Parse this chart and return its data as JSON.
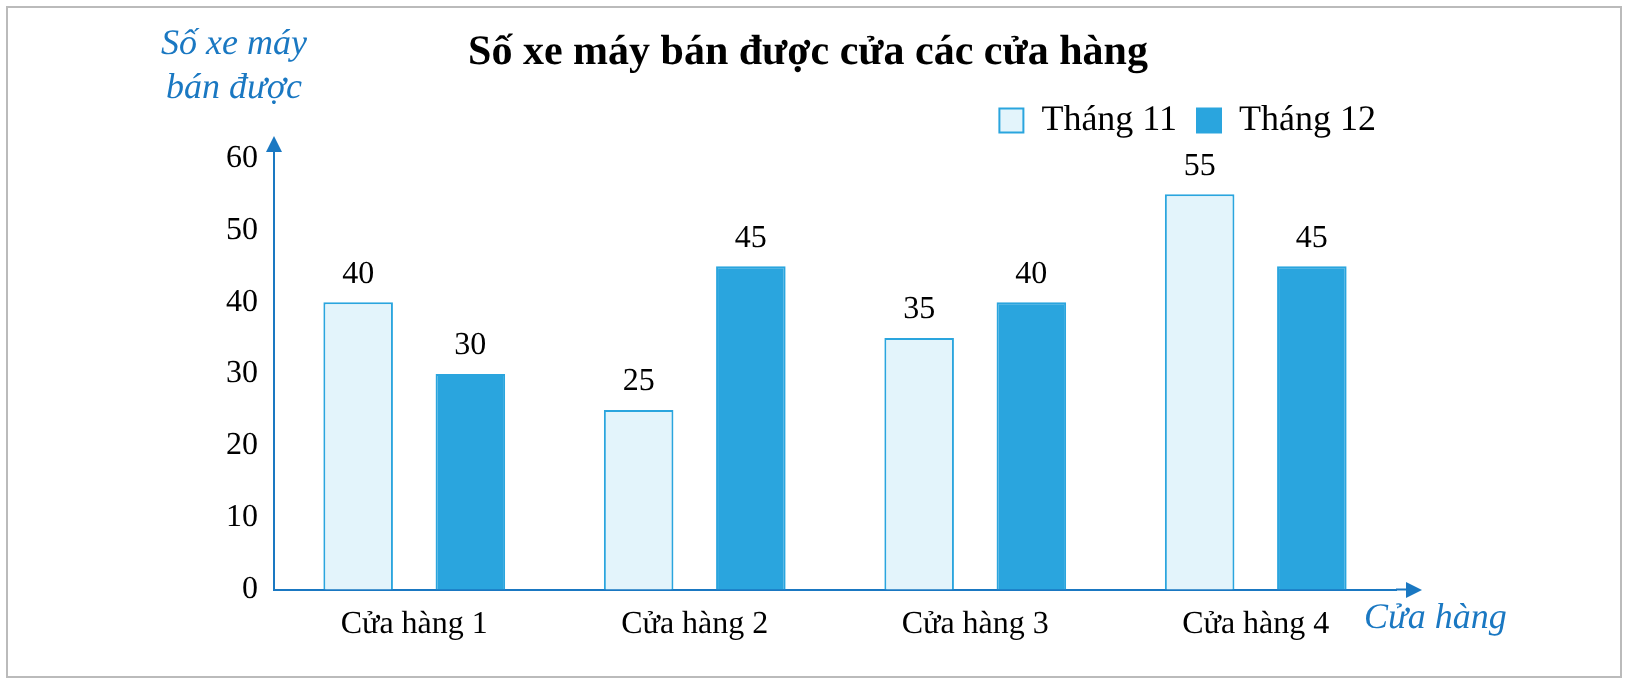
{
  "chart_data": {
    "type": "bar",
    "title": "Số xe máy bán được cửa các cửa hàng",
    "ylabel": "Số xe máy bán được",
    "xlabel": "Cửa hàng",
    "categories": [
      "Cửa hàng 1",
      "Cửa hàng 2",
      "Cửa hàng 3",
      "Cửa hàng 4"
    ],
    "series": [
      {
        "name": "Tháng 11",
        "color": "#e3f4fb",
        "values": [
          40,
          25,
          35,
          55
        ]
      },
      {
        "name": "Tháng 12",
        "color": "#2aa5de",
        "values": [
          30,
          45,
          40,
          45
        ]
      }
    ],
    "ylim": [
      0,
      60
    ],
    "yticks": [
      0,
      10,
      20,
      30,
      40,
      50,
      60
    ],
    "grid": false,
    "legend": "top right",
    "data_labels": true
  }
}
